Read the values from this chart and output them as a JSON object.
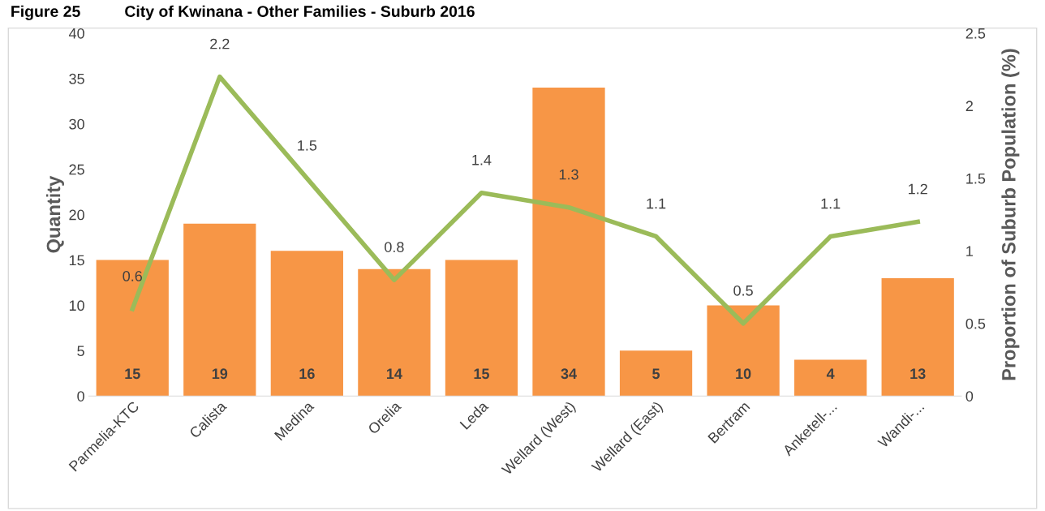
{
  "chart_data": {
    "type": "bar",
    "title": "Figure 25          City of Kwinana - Other Families - Suburb 2016",
    "ylabel": "Quantity",
    "y2label": "Proportion of Suburb Population (%)",
    "categories": [
      "Parmelia-KTC",
      "Calista",
      "Medina",
      "Orelia",
      "Leda",
      "Wellard (West)",
      "Wellard (East)",
      "Bertram",
      "Anketell-...",
      "Wandi-..."
    ],
    "series": [
      {
        "color": "#f79646",
        "values": [
          15,
          19,
          16,
          14,
          15,
          34,
          5,
          10,
          4,
          13
        ]
      },
      {
        "type": "line",
        "axis": "y2",
        "color": "#9bbb59",
        "values": [
          0.6,
          2.2,
          1.5,
          0.8,
          1.4,
          1.3,
          1.1,
          0.5,
          1.1,
          1.2
        ]
      }
    ],
    "ylim": [
      0,
      40
    ],
    "yticks": [
      0,
      5,
      10,
      15,
      20,
      25,
      30,
      35,
      40
    ],
    "y2lim": [
      0,
      2.5
    ],
    "y2ticks": [
      0,
      0.5,
      1,
      1.5,
      2,
      2.5
    ],
    "data_labels": true,
    "grid": false,
    "legend": false,
    "marker": "none",
    "line_style": "solid"
  }
}
